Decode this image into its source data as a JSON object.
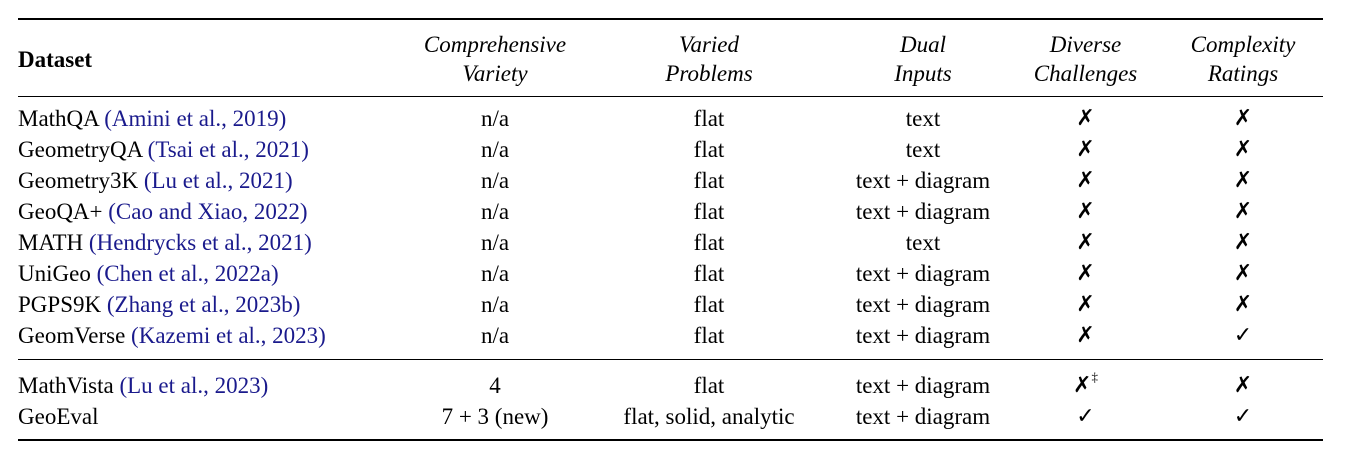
{
  "header": {
    "dataset": "Dataset",
    "variety": [
      "Comprehensive",
      "Variety"
    ],
    "problems": [
      "Varied",
      "Problems"
    ],
    "inputs": [
      "Dual",
      "Inputs"
    ],
    "challenges": [
      "Diverse",
      "Challenges"
    ],
    "ratings": [
      "Complexity",
      "Ratings"
    ]
  },
  "rows": [
    {
      "name": "MathQA",
      "cite": "(Amini et al., 2019)",
      "variety": "n/a",
      "problems": "flat",
      "inputs": "text",
      "challenges": "✗",
      "ratings": "✗"
    },
    {
      "name": "GeometryQA",
      "cite": "(Tsai et al., 2021)",
      "variety": "n/a",
      "problems": "flat",
      "inputs": "text",
      "challenges": "✗",
      "ratings": "✗"
    },
    {
      "name": "Geometry3K",
      "cite": "(Lu et al., 2021)",
      "variety": "n/a",
      "problems": "flat",
      "inputs": "text + diagram",
      "challenges": "✗",
      "ratings": "✗"
    },
    {
      "name": "GeoQA+",
      "cite": "(Cao and Xiao, 2022)",
      "variety": "n/a",
      "problems": "flat",
      "inputs": "text + diagram",
      "challenges": "✗",
      "ratings": "✗"
    },
    {
      "name": "MATH",
      "cite": "(Hendrycks et al., 2021)",
      "variety": "n/a",
      "problems": "flat",
      "inputs": "text",
      "challenges": "✗",
      "ratings": "✗"
    },
    {
      "name": "UniGeo",
      "cite": "(Chen et al., 2022a)",
      "variety": "n/a",
      "problems": "flat",
      "inputs": "text + diagram",
      "challenges": "✗",
      "ratings": "✗"
    },
    {
      "name": "PGPS9K",
      "cite": "(Zhang et al., 2023b)",
      "variety": "n/a",
      "problems": "flat",
      "inputs": "text + diagram",
      "challenges": "✗",
      "ratings": "✗"
    },
    {
      "name": "GeomVerse",
      "cite": "(Kazemi et al., 2023)",
      "variety": "n/a",
      "problems": "flat",
      "inputs": "text + diagram",
      "challenges": "✗",
      "ratings": "✓"
    },
    {
      "name": "MathVista",
      "cite": "(Lu et al., 2023)",
      "variety": "4",
      "problems": "flat",
      "inputs": "text + diagram",
      "challenges": "✗",
      "challenges_note": "‡",
      "ratings": "✗"
    },
    {
      "name": "GeoEval",
      "cite": "",
      "variety": "7 + 3 (new)",
      "problems": "flat, solid, analytic",
      "inputs": "text + diagram",
      "challenges": "✓",
      "ratings": "✓"
    }
  ]
}
